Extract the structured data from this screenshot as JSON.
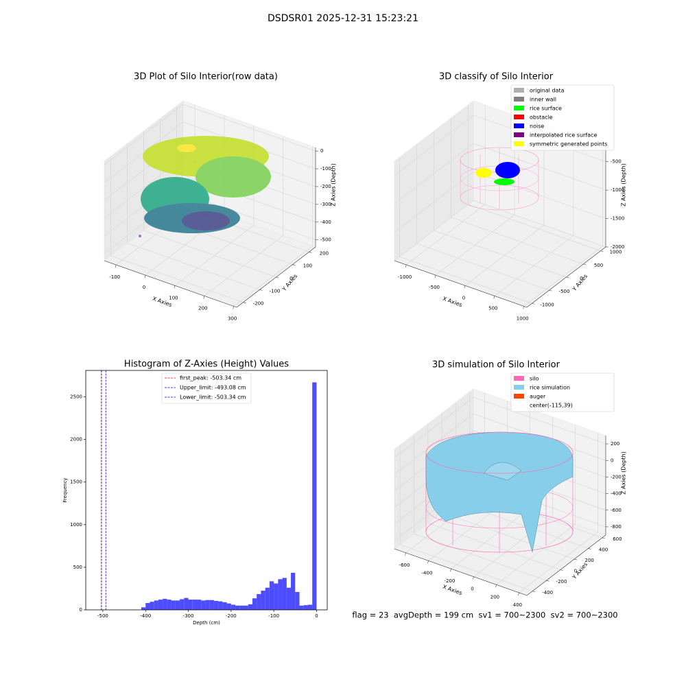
{
  "title": "DSDSR01 2025-12-31 15:23:21",
  "footer": "flag = 23  avgDepth = 199 cm  sv1 = 700~2300  sv2 = 700~2300",
  "chart_data": [
    {
      "type": "scatter3d",
      "title": "3D Plot of Silo Interior(row data)",
      "xlabel": "X Axies",
      "ylabel": "Y Axies",
      "zlabel": "Z Axies (Depth)",
      "xlim": [
        -140,
        310
      ],
      "xticks": [
        -100,
        0,
        100,
        200,
        300
      ],
      "ylim": [
        -240,
        240
      ],
      "yticks": [
        -200,
        -100,
        0,
        100,
        200
      ],
      "zlim": [
        -540,
        20
      ],
      "zticks": [
        0,
        -100,
        -200,
        -300,
        -400,
        -500
      ],
      "grid": true
    },
    {
      "type": "scatter3d",
      "title": "3D classify of Silo Interior",
      "xlabel": "X Axies",
      "ylabel": "Y Axies",
      "zlabel": "Z Axies (Depth)",
      "xlim": [
        -1200,
        1050
      ],
      "xticks": [
        -1000,
        -500,
        0,
        500,
        1000
      ],
      "ylim": [
        -1150,
        1150
      ],
      "yticks": [
        -1000,
        -500,
        0,
        500,
        1000
      ],
      "zlim": [
        -2000,
        -250
      ],
      "zticks": [
        -500,
        -1000,
        -1500,
        -2000
      ],
      "grid": true,
      "legend": "upper right",
      "legend_entries": [
        {
          "name": "original data",
          "color": "#b0b0b0"
        },
        {
          "name": "inner wall",
          "color": "#808080"
        },
        {
          "name": "rice surface",
          "color": "#00ff00"
        },
        {
          "name": "obstacle",
          "color": "#ff0000"
        },
        {
          "name": "noise",
          "color": "#0000ff"
        },
        {
          "name": "interpolated rice surface",
          "color": "#800080"
        },
        {
          "name": "symmetric generated points",
          "color": "#ffff00"
        }
      ]
    },
    {
      "type": "histogram",
      "title": "Histogram of Z-Axies (Height) Values",
      "xlabel": "Depth (cm)",
      "ylabel": "Frequency",
      "color": "#4d4dff",
      "bins": [
        -410,
        -400,
        -390,
        -380,
        -370,
        -360,
        -350,
        -340,
        -330,
        -320,
        -310,
        -300,
        -290,
        -280,
        -270,
        -260,
        -250,
        -240,
        -230,
        -220,
        -210,
        -200,
        -190,
        -180,
        -170,
        -160,
        -150,
        -140,
        -130,
        -120,
        -110,
        -100,
        -90,
        -80,
        -70,
        -60,
        -50,
        -40,
        -30,
        -20,
        -10,
        0
      ],
      "counts": [
        30,
        80,
        95,
        110,
        120,
        130,
        120,
        110,
        110,
        125,
        140,
        120,
        120,
        120,
        110,
        115,
        115,
        105,
        100,
        90,
        75,
        60,
        50,
        50,
        50,
        65,
        135,
        185,
        225,
        260,
        335,
        310,
        360,
        375,
        260,
        435,
        210,
        50,
        55,
        60,
        2670
      ],
      "xlim": [
        -540,
        25
      ],
      "xticks": [
        -500,
        -400,
        -300,
        -200,
        -100,
        0
      ],
      "ylim": [
        0,
        2810
      ],
      "yticks": [
        0,
        500,
        1000,
        1500,
        2000,
        2500
      ],
      "legend": "upper center",
      "vlines": [
        {
          "name": "first_peak: -503.34 cm",
          "value": -503.34,
          "color": "#ff0000"
        },
        {
          "name": "Upper_limit: -493.08 cm",
          "value": -493.08,
          "color": "#0000ff"
        },
        {
          "name": "Lower_limit: -503.34 cm",
          "value": -503.34,
          "color": "#0000ff"
        }
      ]
    },
    {
      "type": "surface3d",
      "title": "3D simulation of Silo Interior",
      "xlabel": "X Axies",
      "ylabel": "Y Axies",
      "zlabel": "Z Axies (Depth)",
      "xlim": [
        -700,
        470
      ],
      "xticks": [
        -600,
        -400,
        -200,
        0,
        200,
        400
      ],
      "ylim": [
        -480,
        650
      ],
      "yticks": [
        -400,
        -200,
        0,
        200,
        400,
        600
      ],
      "zlim": [
        -900,
        300
      ],
      "zticks": [
        200,
        0,
        -200,
        -400,
        -600,
        -800
      ],
      "grid": true,
      "legend": "upper right",
      "legend_entries": [
        {
          "name": "silo",
          "color": "#ff69b4"
        },
        {
          "name": "rice simulation",
          "color": "#87ceeb"
        },
        {
          "name": "auger",
          "color": "#ff4500"
        },
        {
          "name": "center(-115,39)"
        }
      ]
    }
  ]
}
